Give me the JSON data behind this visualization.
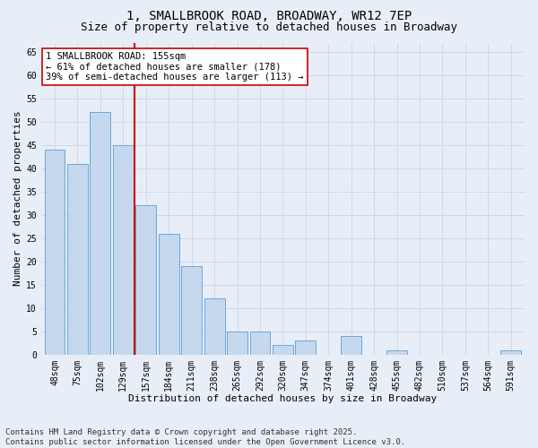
{
  "title_line1": "1, SMALLBROOK ROAD, BROADWAY, WR12 7EP",
  "title_line2": "Size of property relative to detached houses in Broadway",
  "xlabel": "Distribution of detached houses by size in Broadway",
  "ylabel": "Number of detached properties",
  "categories": [
    "48sqm",
    "75sqm",
    "102sqm",
    "129sqm",
    "157sqm",
    "184sqm",
    "211sqm",
    "238sqm",
    "265sqm",
    "292sqm",
    "320sqm",
    "347sqm",
    "374sqm",
    "401sqm",
    "428sqm",
    "455sqm",
    "482sqm",
    "510sqm",
    "537sqm",
    "564sqm",
    "591sqm"
  ],
  "values": [
    44,
    41,
    52,
    45,
    32,
    26,
    19,
    12,
    5,
    5,
    2,
    3,
    0,
    4,
    0,
    1,
    0,
    0,
    0,
    0,
    1
  ],
  "bar_color": "#c5d8ed",
  "bar_edge_color": "#5a9fd4",
  "grid_color": "#d0d8e8",
  "bg_color": "#e8eef8",
  "vline_color": "#cc0000",
  "annotation_text": "1 SMALLBROOK ROAD: 155sqm\n← 61% of detached houses are smaller (178)\n39% of semi-detached houses are larger (113) →",
  "annotation_box_color": "#ffffff",
  "annotation_box_edge": "#cc0000",
  "ylim": [
    0,
    67
  ],
  "yticks": [
    0,
    5,
    10,
    15,
    20,
    25,
    30,
    35,
    40,
    45,
    50,
    55,
    60,
    65
  ],
  "footnote": "Contains HM Land Registry data © Crown copyright and database right 2025.\nContains public sector information licensed under the Open Government Licence v3.0.",
  "title_fontsize": 10,
  "subtitle_fontsize": 9,
  "axis_label_fontsize": 8,
  "tick_fontsize": 7,
  "annotation_fontsize": 7.5,
  "footnote_fontsize": 6.5
}
